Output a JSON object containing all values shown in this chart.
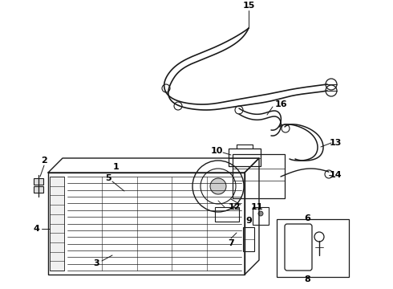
{
  "bg_color": "#ffffff",
  "line_color": "#1a1a1a",
  "label_color": "#000000",
  "label_fontsize": 8,
  "label_fontweight": "bold",
  "figsize": [
    4.9,
    3.6
  ],
  "dpi": 100
}
